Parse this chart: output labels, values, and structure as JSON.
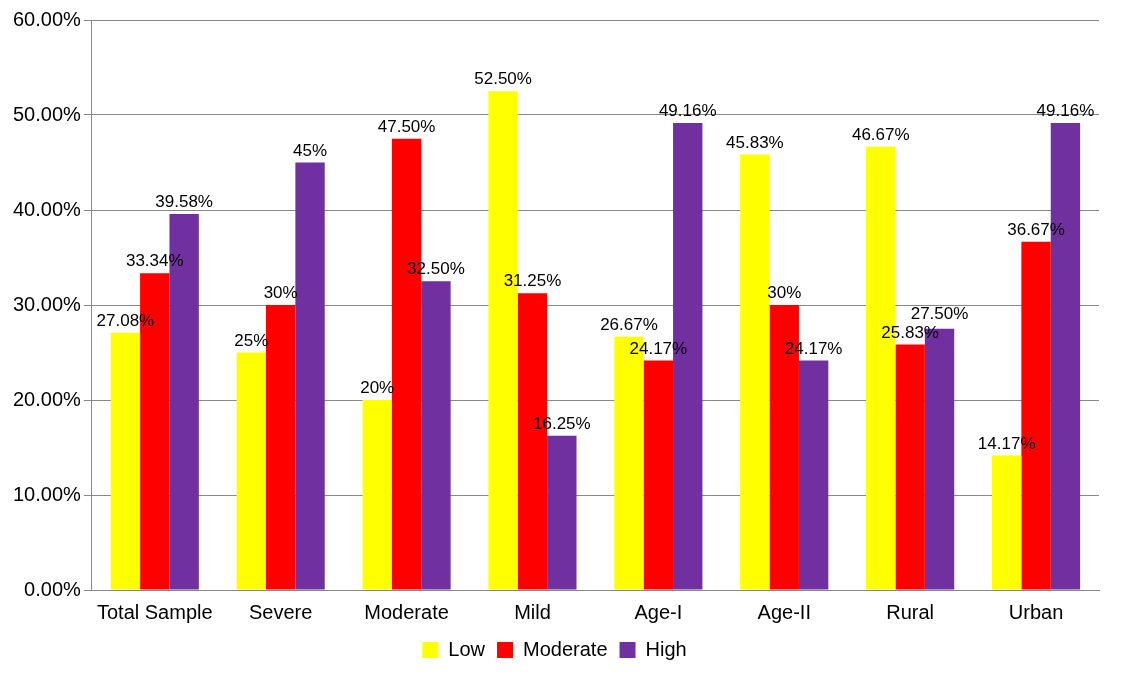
{
  "chart_data": {
    "type": "bar",
    "categories": [
      "Total Sample",
      "Severe",
      "Moderate",
      "Mild",
      "Age-I",
      "Age-II",
      "Rural",
      "Urban"
    ],
    "series": [
      {
        "name": "Low",
        "color": "#ffff00",
        "values": [
          27.08,
          25,
          20,
          52.5,
          26.67,
          45.83,
          46.67,
          14.17
        ],
        "value_labels": [
          "27.08%",
          "25%",
          "20%",
          "52.50%",
          "26.67%",
          "45.83%",
          "46.67%",
          "14.17%"
        ]
      },
      {
        "name": "Moderate",
        "color": "#ff0000",
        "values": [
          33.34,
          30,
          47.5,
          31.25,
          24.17,
          30,
          25.83,
          36.67
        ],
        "value_labels": [
          "33.34%",
          "30%",
          "47.50%",
          "31.25%",
          "24.17%",
          "30%",
          "25.83%",
          "36.67%"
        ]
      },
      {
        "name": "High",
        "color": "#7030a0",
        "values": [
          39.58,
          45,
          32.5,
          16.25,
          49.16,
          24.17,
          27.5,
          49.16
        ],
        "value_labels": [
          "39.58%",
          "45%",
          "32.50%",
          "16.25%",
          "49.16%",
          "24.17%",
          "27.50%",
          "49.16%"
        ]
      }
    ],
    "ylim": [
      0,
      60
    ],
    "yticks": [
      {
        "value": 0,
        "label": "0.00%"
      },
      {
        "value": 10,
        "label": "10.00%"
      },
      {
        "value": 20,
        "label": "20.00%"
      },
      {
        "value": 30,
        "label": "30.00%"
      },
      {
        "value": 40,
        "label": "40.00%"
      },
      {
        "value": 50,
        "label": "50.00%"
      },
      {
        "value": 60,
        "label": "60.00%"
      }
    ],
    "grid": "y",
    "legend": "bottom"
  }
}
